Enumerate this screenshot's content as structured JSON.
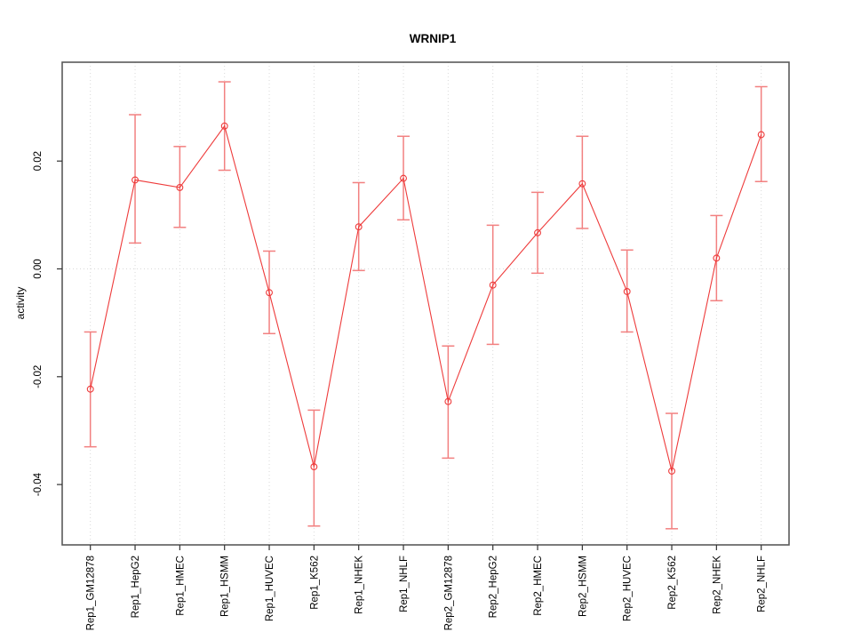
{
  "chart_data": {
    "type": "line",
    "title": "WRNIP1",
    "xlabel": "",
    "ylabel": "activity",
    "categories": [
      "Rep1_GM12878",
      "Rep1_HepG2",
      "Rep1_HMEC",
      "Rep1_HSMM",
      "Rep1_HUVEC",
      "Rep1_K562",
      "Rep1_NHEK",
      "Rep1_NHLF",
      "Rep2_GM12878",
      "Rep2_HepG2",
      "Rep2_HMEC",
      "Rep2_HSMM",
      "Rep2_HUVEC",
      "Rep2_K562",
      "Rep2_NHEK",
      "Rep2_NHLF"
    ],
    "series": [
      {
        "name": "activity",
        "values": [
          -0.0223,
          0.0165,
          0.0151,
          0.0265,
          -0.0044,
          -0.0367,
          0.0078,
          0.0168,
          -0.0246,
          -0.003,
          0.0067,
          0.0158,
          -0.0042,
          -0.0375,
          0.002,
          0.0249
        ],
        "upper": [
          -0.0117,
          0.0286,
          0.0227,
          0.0347,
          0.0033,
          -0.0262,
          0.016,
          0.0246,
          -0.0143,
          0.0081,
          0.0142,
          0.0246,
          0.0035,
          -0.0268,
          0.0099,
          0.0338
        ],
        "lower": [
          -0.033,
          0.0048,
          0.0077,
          0.0183,
          -0.012,
          -0.0477,
          -0.0003,
          0.0091,
          -0.0351,
          -0.014,
          -0.0008,
          0.0075,
          -0.0117,
          -0.0482,
          -0.0059,
          0.0162
        ]
      }
    ],
    "yticks": [
      {
        "value": -0.04,
        "label": "-0.04"
      },
      {
        "value": -0.02,
        "label": "-0.02"
      },
      {
        "value": 0.0,
        "label": "0.00"
      },
      {
        "value": 0.02,
        "label": "0.02"
      }
    ],
    "ylim": [
      -0.0512,
      0.0384
    ],
    "grid": {
      "vertical": true,
      "horizontal_at_zero": true
    },
    "legend_position": "none",
    "colors": {
      "line": "#ee3b3b",
      "marker": "#ee3b3b",
      "error_bar": "#f28080",
      "gridline": "#d9d9d9",
      "box_border": "#5a5a5a",
      "tick": "#333333",
      "text": "#000000"
    }
  }
}
